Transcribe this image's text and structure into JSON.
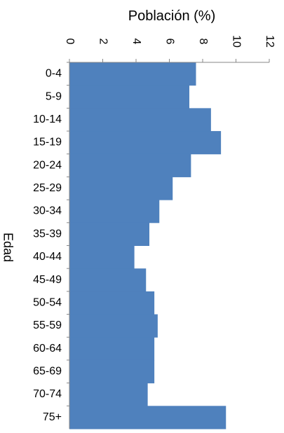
{
  "chart_data": {
    "type": "bar",
    "orientation": "horizontal",
    "title": "Población (%)",
    "ylabel": "Edad",
    "xlim": [
      0,
      12
    ],
    "x_ticks": [
      0,
      2,
      4,
      6,
      8,
      10,
      12
    ],
    "x_axis_position": "top",
    "tick_label_rotation": "rotated 90° clockwise",
    "grid": false,
    "legend": "none",
    "bar_color": "#4F81BD",
    "categories": [
      "0-4",
      "5-9",
      "10-14",
      "15-19",
      "20-24",
      "25-29",
      "30-34",
      "35-39",
      "40-44",
      "45-49",
      "50-54",
      "55-59",
      "60-64",
      "65-69",
      "70-74",
      "75+"
    ],
    "values": [
      7.6,
      7.2,
      8.5,
      9.1,
      7.3,
      6.2,
      5.4,
      4.8,
      3.9,
      4.6,
      5.1,
      5.3,
      5.1,
      5.1,
      4.7,
      9.4
    ]
  }
}
